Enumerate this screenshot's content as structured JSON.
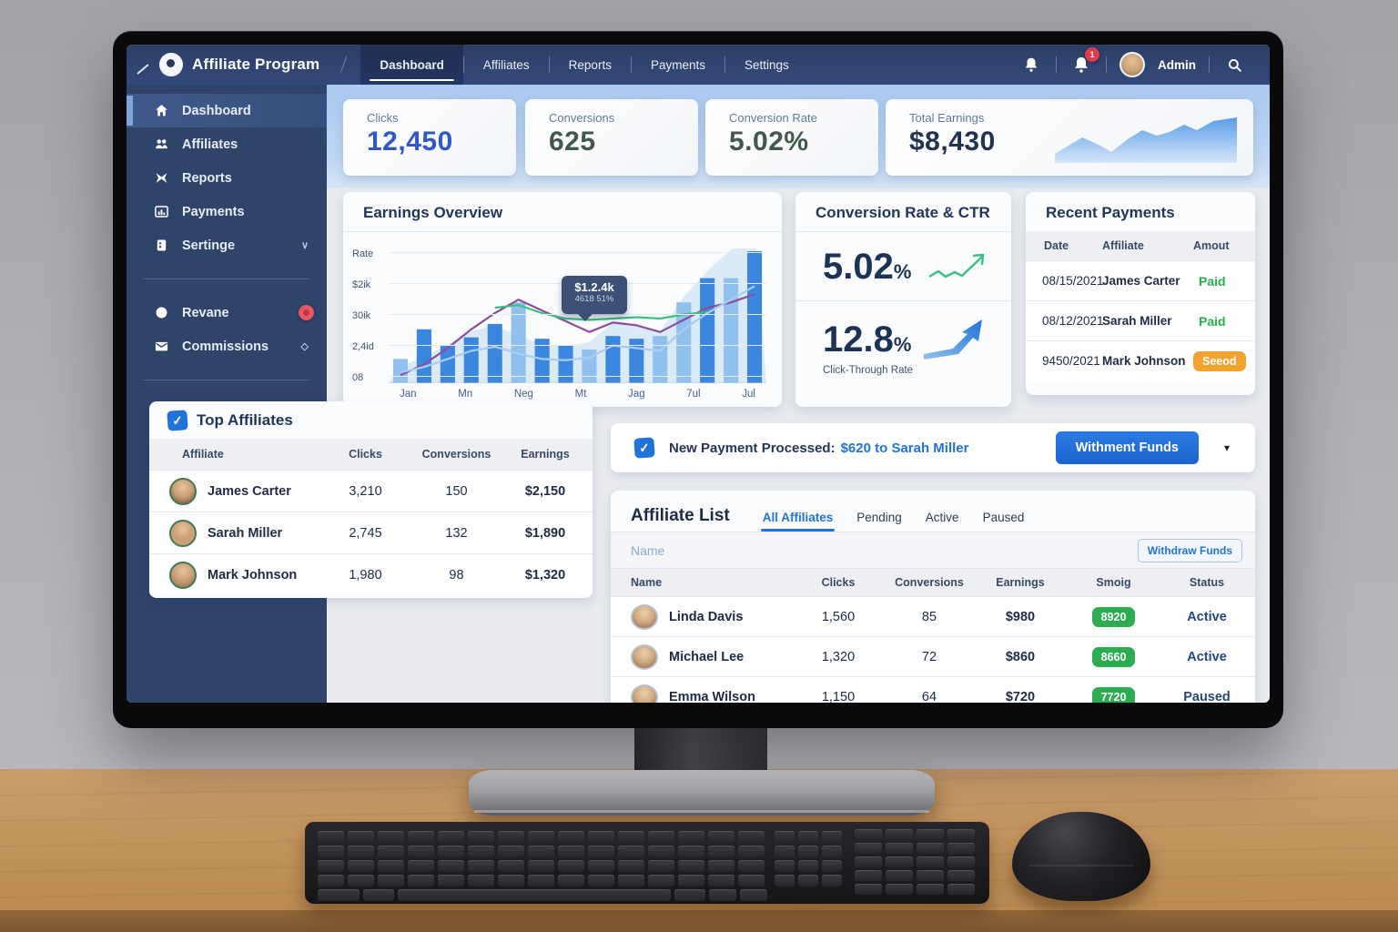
{
  "navbar": {
    "brand": "Affiliate Program",
    "tabs": [
      {
        "label": "Dashboard",
        "active": true
      },
      {
        "label": "Affiliates",
        "active": false
      },
      {
        "label": "Reports",
        "active": false
      },
      {
        "label": "Payments",
        "active": false
      },
      {
        "label": "Settings",
        "active": false
      }
    ],
    "notification_count": "1",
    "user_name": "Admin",
    "icons": [
      "bell-icon",
      "bell-icon-badged",
      "avatar",
      "search-icon"
    ]
  },
  "sidebar": {
    "items": [
      {
        "label": "Dashboard",
        "icon": "home-icon",
        "active": true
      },
      {
        "label": "Affiliates",
        "icon": "users-icon",
        "active": false
      },
      {
        "label": "Reports",
        "icon": "report-icon",
        "active": false
      },
      {
        "label": "Payments",
        "icon": "bar-chart-icon",
        "active": false
      },
      {
        "label": "Sertinge",
        "icon": "settings-icon",
        "active": false,
        "chevron": "down"
      },
      {
        "label": "Revane",
        "icon": "circle-icon",
        "active": false,
        "chevron": "right",
        "badge": true,
        "divider_before": true
      },
      {
        "label": "Commissions",
        "icon": "mail-icon",
        "active": false,
        "chevron": "right"
      }
    ]
  },
  "stat_cards": [
    {
      "label": "Clicks",
      "value": "12,450",
      "value_color": "#3158c4"
    },
    {
      "label": "Conversions",
      "value": "625",
      "value_color": "#42584a"
    },
    {
      "label": "Conversion Rate",
      "value": "5.02%",
      "value_color": "#42584a"
    },
    {
      "label": "Total Earnings",
      "value": "$8,430",
      "value_color": "#22334f",
      "sparkline": true
    }
  ],
  "chart_data": {
    "type": "bar",
    "title": "Earnings Overview",
    "y_tick_labels": [
      "Rate",
      "$2ik",
      "30ik",
      "2,4id",
      "08"
    ],
    "x_tick_labels": [
      "Jan",
      "Mn",
      "Neg",
      "Mt",
      "Jag",
      "7ul",
      "Jul"
    ],
    "bar_values_pct": [
      18,
      40,
      28,
      34,
      44,
      60,
      33,
      28,
      25,
      35,
      33,
      35,
      60,
      78,
      78,
      98
    ],
    "bar_light_indices": [
      0,
      5,
      8,
      11,
      12,
      14
    ],
    "bar_color": "#3b87e0",
    "bar_color_light": "#8fc0ee",
    "area_fill": "#bcd7f2",
    "line_series": [
      {
        "name": "purple",
        "color": "#8a4f9e",
        "values_pct": [
          6,
          14,
          26,
          40,
          52,
          62,
          54,
          46,
          38,
          45,
          43,
          38,
          47,
          56,
          60,
          66
        ]
      },
      {
        "name": "green",
        "color": "#3bbf82",
        "values_pct": [
          null,
          null,
          null,
          null,
          56,
          58,
          52,
          48,
          47,
          48,
          49,
          48,
          51,
          53,
          null,
          null
        ]
      },
      {
        "name": "light-blue",
        "color": "#a9cdf0",
        "values_pct": [
          8,
          12,
          18,
          24,
          27,
          22,
          18,
          17,
          19,
          28,
          26,
          24,
          40,
          52,
          62,
          72
        ]
      }
    ],
    "tooltip": {
      "line1": "$1.2.4k",
      "line2": "4618 51%"
    }
  },
  "conversion_panel": {
    "title": "Conversion Rate & CTR",
    "rate": "5.02",
    "rate_unit": "%",
    "ctr": "12.8",
    "ctr_unit": "%",
    "ctr_label": "Click-Through Rate",
    "trend_icons": [
      "green-zigzag-up-arrow-icon",
      "blue-up-arrow-icon"
    ]
  },
  "recent_payments": {
    "title": "Recent Payments",
    "columns": [
      "Date",
      "Affiliate",
      "Amout"
    ],
    "rows": [
      {
        "date": "08/15/2021",
        "affiliate": "James Carter",
        "status": "Paid",
        "style": "paid-text"
      },
      {
        "date": "08/12/2021",
        "affiliate": "Sarah Miller",
        "status": "Paid",
        "style": "paid-text"
      },
      {
        "date": "9450/2021",
        "affiliate": "Mark Johnson",
        "status": "Seeod",
        "style": "orange-pill"
      }
    ],
    "orange": "#f0a32e"
  },
  "top_affiliates": {
    "title": "Top Affiliates",
    "columns": [
      "Affiliate",
      "Clicks",
      "Conversions",
      "Earnings"
    ],
    "rows": [
      {
        "name": "James Carter",
        "clicks": "3,210",
        "conversions": "150",
        "earnings": "$2,150"
      },
      {
        "name": "Sarah Miller",
        "clicks": "2,745",
        "conversions": "132",
        "earnings": "$1,890"
      },
      {
        "name": "Mark Johnson",
        "clicks": "1,980",
        "conversions": "98",
        "earnings": "$1,320"
      }
    ]
  },
  "banner": {
    "text_bold": "New Payment Processed:",
    "text_link": "$620 to Sarah Miller",
    "button_label": "Withment Funds",
    "caret": "▾"
  },
  "affiliate_list": {
    "title": "Affiliate List",
    "tabs": [
      {
        "label": "All Affiliates",
        "active": true
      },
      {
        "label": "Pending",
        "active": false
      },
      {
        "label": "Active",
        "active": false
      },
      {
        "label": "Paused",
        "active": false
      }
    ],
    "search_placeholder": "Name",
    "action_button": "Withdraw Funds",
    "columns": [
      "Name",
      "Clicks",
      "Conversions",
      "Earnings",
      "Smoig",
      "Status"
    ],
    "rows": [
      {
        "name": "Linda Davis",
        "clicks": "1,560",
        "conversions": "85",
        "earnings": "$980",
        "badge": "8920",
        "status": "Active"
      },
      {
        "name": "Michael Lee",
        "clicks": "1,320",
        "conversions": "72",
        "earnings": "$860",
        "badge": "8660",
        "status": "Active"
      },
      {
        "name": "Emma Wilson",
        "clicks": "1,150",
        "conversions": "64",
        "earnings": "$720",
        "badge": "7720",
        "status": "Paused"
      }
    ],
    "badge_green": "#2eac52"
  }
}
